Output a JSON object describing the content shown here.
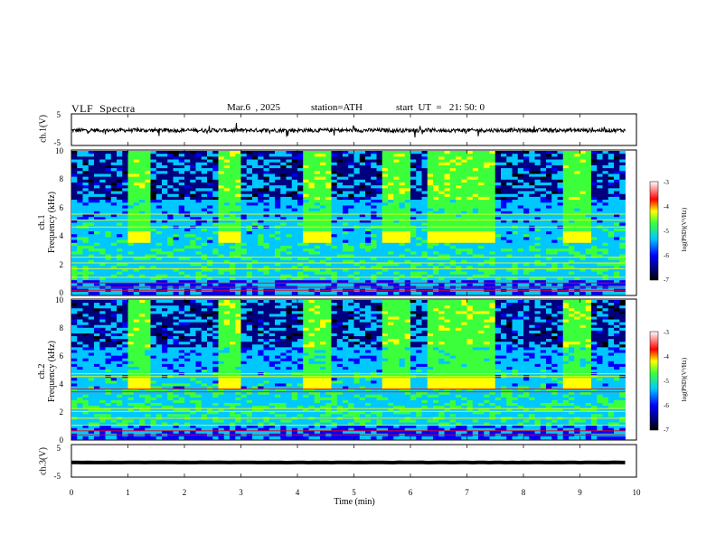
{
  "header": {
    "title": "VLF  Spectra",
    "date": "Mar.6  , 2025",
    "station": "station=ATH",
    "start": "start  UT  =   21: 50: 0"
  },
  "colors": {
    "black": "#000000",
    "dark_blue": "#00007f",
    "blue": "#0000ff",
    "cyan": "#00c8ff",
    "green": "#3cff3c",
    "yellow": "#ffff00",
    "red": "#ff0000",
    "white_top": "#ffffff"
  },
  "chart_data": [
    {
      "type": "line",
      "panel": "ch1-waveform",
      "ylabel": "ch.1(V)",
      "ylim": [
        -5,
        5
      ],
      "yticks": [
        "5",
        "-5"
      ],
      "xlim": [
        0,
        10
      ],
      "series": [
        {
          "description": "noisy trace near -0.2 V with impulsive spikes",
          "mean": -0.2,
          "noise_amplitude": 0.6
        }
      ]
    },
    {
      "type": "heatmap",
      "panel": "ch1-spectrogram",
      "ylabel": "ch.1\nFrequency  (kHz)",
      "ylim": [
        0,
        10
      ],
      "yticks": [
        "0",
        "2",
        "4",
        "6",
        "8",
        "10"
      ],
      "xlim": [
        0,
        9.8
      ],
      "colorbar": {
        "label": "log(PSD)(V²/Hz)",
        "range": [
          -7,
          -3
        ],
        "ticks": [
          "-3",
          "-4",
          "-5",
          "-6",
          "-7"
        ]
      },
      "quiet_intervals_min": [
        [
          1.05,
          1.45
        ],
        [
          2.6,
          3.0
        ],
        [
          4.1,
          4.6
        ],
        [
          5.5,
          5.95
        ],
        [
          6.3,
          7.55
        ],
        [
          8.75,
          9.15
        ]
      ],
      "persistent_lines_khz": [
        0.3,
        0.5,
        0.8,
        1.2,
        1.8,
        2.2,
        2.6,
        4.7,
        5.2,
        5.6
      ]
    },
    {
      "type": "heatmap",
      "panel": "ch2-spectrogram",
      "ylabel": "ch.2\nFrequency  (kHz)",
      "ylim": [
        0,
        10
      ],
      "yticks": [
        "0",
        "2",
        "4",
        "6",
        "8",
        "10"
      ],
      "xlim": [
        0,
        9.8
      ],
      "colorbar": {
        "label": "log(PSD)(V²/Hz)",
        "range": [
          -7,
          -3
        ],
        "ticks": [
          "-3",
          "-4",
          "-5",
          "-6",
          "-7"
        ]
      },
      "quiet_intervals_min": [
        [
          1.05,
          1.45
        ],
        [
          2.6,
          3.0
        ],
        [
          4.1,
          4.6
        ],
        [
          5.5,
          5.95
        ],
        [
          6.3,
          7.55
        ],
        [
          8.75,
          9.15
        ]
      ],
      "persistent_lines_khz": [
        0.3,
        0.6,
        1.0,
        1.5,
        2.0,
        2.2,
        3.4,
        3.6,
        4.5,
        4.7
      ]
    },
    {
      "type": "line",
      "panel": "ch3-waveform",
      "ylabel": "ch.3(V)",
      "ylim": [
        -5,
        5
      ],
      "yticks": [
        "5",
        "-5"
      ],
      "xlim": [
        0,
        10
      ],
      "series": [
        {
          "description": "flat thick trace",
          "mean": -0.5,
          "noise_amplitude": 0.05
        }
      ]
    }
  ],
  "xaxis": {
    "label": "Time  (min)",
    "ticks": [
      "0",
      "1",
      "2",
      "3",
      "4",
      "5",
      "6",
      "7",
      "8",
      "9",
      "10"
    ]
  }
}
